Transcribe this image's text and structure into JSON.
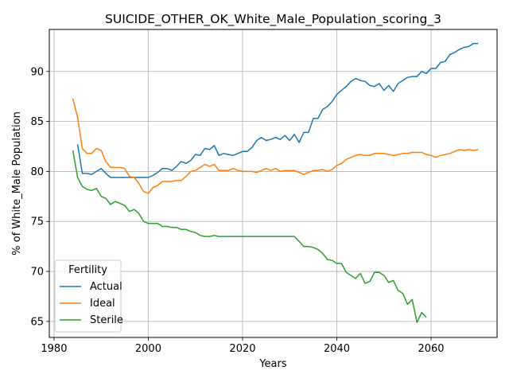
{
  "chart_data": {
    "type": "line",
    "title": "SUICIDE_OTHER_OK_White_Male_Population_scoring_3",
    "xlabel": "Years",
    "ylabel": "% of White_Male Population",
    "xlim": [
      1979,
      2074
    ],
    "ylim": [
      63.4,
      94.2
    ],
    "xticks": [
      1980,
      2000,
      2020,
      2040,
      2060
    ],
    "yticks": [
      65,
      70,
      75,
      80,
      85,
      90
    ],
    "grid": true,
    "legend": {
      "title": "Fertility",
      "placement": "bottom-left"
    },
    "series": [
      {
        "name": "Actual",
        "color": "#1f77b4",
        "x": [
          1985,
          1986,
          1987,
          1988,
          1989,
          1990,
          1991,
          1992,
          1993,
          1994,
          1995,
          1996,
          1997,
          1998,
          1999,
          2000,
          2001,
          2002,
          2003,
          2004,
          2005,
          2006,
          2007,
          2008,
          2009,
          2010,
          2011,
          2012,
          2013,
          2014,
          2015,
          2016,
          2017,
          2018,
          2019,
          2020,
          2021,
          2022,
          2023,
          2024,
          2025,
          2026,
          2027,
          2028,
          2029,
          2030,
          2031,
          2032,
          2033,
          2034,
          2035,
          2036,
          2037,
          2038,
          2039,
          2040,
          2041,
          2042,
          2043,
          2044,
          2045,
          2046,
          2047,
          2048,
          2049,
          2050,
          2051,
          2052,
          2053,
          2054,
          2055,
          2056,
          2057,
          2058,
          2059,
          2060,
          2061,
          2062,
          2063,
          2064,
          2065,
          2066,
          2067,
          2068,
          2069,
          2070
        ],
        "y": [
          82.7,
          79.8,
          79.8,
          79.7,
          80.0,
          80.3,
          79.8,
          79.4,
          79.4,
          79.4,
          79.4,
          79.4,
          79.4,
          79.4,
          79.4,
          79.4,
          79.6,
          79.9,
          80.3,
          80.3,
          80.1,
          80.5,
          81.0,
          80.8,
          81.1,
          81.7,
          81.6,
          82.3,
          82.2,
          82.6,
          81.6,
          81.8,
          81.7,
          81.6,
          81.8,
          82.0,
          82.0,
          82.4,
          83.1,
          83.4,
          83.1,
          83.2,
          83.4,
          83.2,
          83.6,
          83.1,
          83.7,
          82.9,
          83.9,
          83.9,
          85.3,
          85.3,
          86.2,
          86.5,
          87.0,
          87.7,
          88.1,
          88.5,
          89.0,
          89.3,
          89.1,
          89.0,
          88.6,
          88.5,
          88.8,
          88.1,
          88.6,
          88.0,
          88.8,
          89.1,
          89.4,
          89.5,
          89.5,
          90.0,
          89.8,
          90.3,
          90.3,
          90.9,
          91.0,
          91.7,
          91.9,
          92.2,
          92.4,
          92.5,
          92.8,
          92.8
        ]
      },
      {
        "name": "Ideal",
        "color": "#ff7f0e",
        "x": [
          1984,
          1985,
          1986,
          1987,
          1988,
          1989,
          1990,
          1991,
          1992,
          1993,
          1994,
          1995,
          1996,
          1997,
          1998,
          1999,
          2000,
          2001,
          2002,
          2003,
          2004,
          2005,
          2006,
          2007,
          2008,
          2009,
          2010,
          2011,
          2012,
          2013,
          2014,
          2015,
          2016,
          2017,
          2018,
          2019,
          2020,
          2021,
          2022,
          2023,
          2024,
          2025,
          2026,
          2027,
          2028,
          2029,
          2030,
          2031,
          2032,
          2033,
          2034,
          2035,
          2036,
          2037,
          2038,
          2039,
          2040,
          2041,
          2042,
          2043,
          2044,
          2045,
          2046,
          2047,
          2048,
          2049,
          2050,
          2051,
          2052,
          2053,
          2054,
          2055,
          2056,
          2057,
          2058,
          2059,
          2060,
          2061,
          2062,
          2063,
          2064,
          2065,
          2066,
          2067,
          2068,
          2069,
          2070
        ],
        "y": [
          87.3,
          85.4,
          82.3,
          81.8,
          81.8,
          82.3,
          82.1,
          81.0,
          80.4,
          80.4,
          80.4,
          80.3,
          79.5,
          79.4,
          78.8,
          78.0,
          77.8,
          78.4,
          78.6,
          79.0,
          79.0,
          79.0,
          79.1,
          79.1,
          79.5,
          80.0,
          80.1,
          80.4,
          80.7,
          80.5,
          80.7,
          80.1,
          80.1,
          80.1,
          80.3,
          80.1,
          80.0,
          80.0,
          80.0,
          79.9,
          80.1,
          80.3,
          80.1,
          80.3,
          80.0,
          80.1,
          80.1,
          80.1,
          79.9,
          79.7,
          79.9,
          80.1,
          80.1,
          80.2,
          80.0,
          80.2,
          80.6,
          80.8,
          81.2,
          81.4,
          81.6,
          81.7,
          81.6,
          81.6,
          81.8,
          81.8,
          81.8,
          81.7,
          81.6,
          81.7,
          81.8,
          81.8,
          81.9,
          81.9,
          81.9,
          81.7,
          81.6,
          81.4,
          81.6,
          81.7,
          81.8,
          82.0,
          82.2,
          82.1,
          82.2,
          82.1,
          82.2
        ]
      },
      {
        "name": "Sterile",
        "color": "#2ca02c",
        "x": [
          1984,
          1985,
          1986,
          1987,
          1988,
          1989,
          1990,
          1991,
          1992,
          1993,
          1994,
          1995,
          1996,
          1997,
          1998,
          1999,
          2000,
          2001,
          2002,
          2003,
          2004,
          2005,
          2006,
          2007,
          2008,
          2009,
          2010,
          2011,
          2012,
          2013,
          2014,
          2015,
          2016,
          2017,
          2018,
          2019,
          2020,
          2021,
          2022,
          2023,
          2024,
          2025,
          2026,
          2027,
          2028,
          2029,
          2030,
          2031,
          2032,
          2033,
          2034,
          2035,
          2036,
          2037,
          2038,
          2039,
          2040,
          2041,
          2042,
          2043,
          2044,
          2045,
          2046,
          2047,
          2048,
          2049,
          2050,
          2051,
          2052,
          2053,
          2054,
          2055,
          2056,
          2057,
          2058,
          2059
        ],
        "y": [
          82.1,
          79.4,
          78.5,
          78.2,
          78.1,
          78.3,
          77.5,
          77.3,
          76.7,
          77.0,
          76.8,
          76.6,
          76.0,
          76.2,
          75.8,
          75.0,
          74.8,
          74.8,
          74.8,
          74.5,
          74.5,
          74.4,
          74.4,
          74.2,
          74.2,
          74.0,
          73.9,
          73.6,
          73.5,
          73.5,
          73.6,
          73.5,
          73.5,
          73.5,
          73.5,
          73.5,
          73.5,
          73.5,
          73.5,
          73.5,
          73.5,
          73.5,
          73.5,
          73.5,
          73.5,
          73.5,
          73.5,
          73.5,
          73.0,
          72.5,
          72.5,
          72.4,
          72.2,
          71.8,
          71.2,
          71.1,
          70.8,
          70.8,
          69.9,
          69.6,
          69.3,
          69.8,
          68.8,
          69.0,
          69.9,
          69.9,
          69.6,
          68.9,
          69.1,
          68.1,
          67.8,
          66.7,
          67.2,
          64.9,
          65.9,
          65.4
        ]
      }
    ]
  }
}
